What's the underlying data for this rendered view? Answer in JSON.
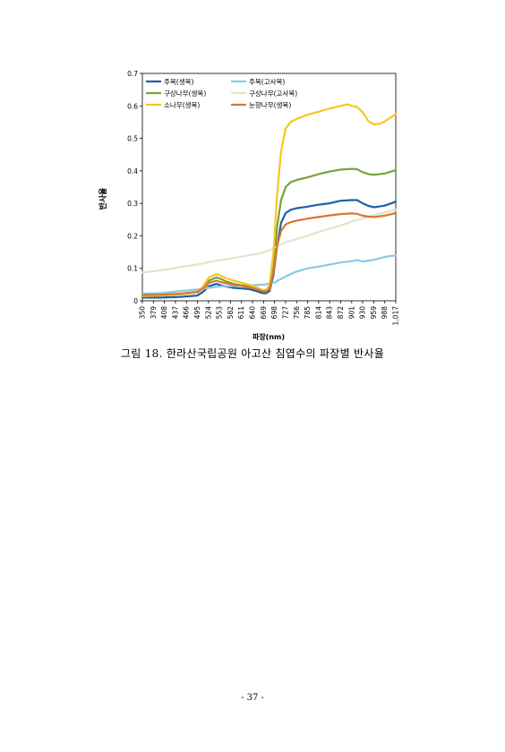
{
  "chart_data": {
    "type": "line",
    "xlabel": "파장(nm)",
    "ylabel": "반사율",
    "categories": [
      "350",
      "379",
      "408",
      "437",
      "466",
      "495",
      "524",
      "553",
      "582",
      "611",
      "640",
      "669",
      "698",
      "727",
      "756",
      "785",
      "814",
      "843",
      "872",
      "901",
      "930",
      "959",
      "988",
      "1,017"
    ],
    "x_numeric": [
      350,
      379,
      408,
      437,
      466,
      495,
      524,
      553,
      582,
      611,
      640,
      669,
      698,
      727,
      756,
      785,
      814,
      843,
      872,
      901,
      930,
      959,
      988,
      1017
    ],
    "xlim": [
      350,
      1017
    ],
    "ylim": [
      0,
      0.7
    ],
    "yticks": [
      0,
      0.1,
      0.2,
      0.3,
      0.4,
      0.5,
      0.6,
      0.7
    ],
    "grid": false,
    "legend_position": "top-left, two columns",
    "series": [
      {
        "name": "주목(생목)",
        "color": "#1f5fa8",
        "x": [
          350,
          400,
          450,
          495,
          510,
          525,
          545,
          555,
          570,
          590,
          610,
          630,
          650,
          665,
          675,
          685,
          695,
          705,
          715,
          727,
          740,
          756,
          785,
          814,
          843,
          872,
          901,
          915,
          930,
          945,
          960,
          988,
          1017
        ],
        "y": [
          0.01,
          0.01,
          0.012,
          0.016,
          0.028,
          0.045,
          0.052,
          0.048,
          0.044,
          0.04,
          0.038,
          0.036,
          0.03,
          0.024,
          0.023,
          0.03,
          0.08,
          0.17,
          0.24,
          0.27,
          0.28,
          0.285,
          0.29,
          0.296,
          0.3,
          0.308,
          0.31,
          0.31,
          0.3,
          0.292,
          0.288,
          0.293,
          0.305
        ]
      },
      {
        "name": "주목(고사목)",
        "color": "#8dc8e4",
        "x": [
          350,
          400,
          450,
          495,
          525,
          545,
          565,
          600,
          640,
          670,
          698,
          712,
          727,
          756,
          785,
          814,
          843,
          872,
          901,
          915,
          930,
          959,
          988,
          1017
        ],
        "y": [
          0.022,
          0.024,
          0.03,
          0.035,
          0.04,
          0.043,
          0.045,
          0.046,
          0.048,
          0.05,
          0.056,
          0.066,
          0.075,
          0.09,
          0.1,
          0.105,
          0.112,
          0.118,
          0.122,
          0.125,
          0.121,
          0.126,
          0.135,
          0.14
        ]
      },
      {
        "name": "구상나무(생목)",
        "color": "#77a23e",
        "x": [
          350,
          400,
          450,
          495,
          510,
          525,
          545,
          555,
          570,
          590,
          610,
          630,
          650,
          665,
          675,
          685,
          695,
          705,
          715,
          727,
          740,
          756,
          785,
          814,
          843,
          872,
          901,
          915,
          930,
          945,
          960,
          988,
          1017
        ],
        "y": [
          0.015,
          0.016,
          0.02,
          0.025,
          0.04,
          0.062,
          0.072,
          0.068,
          0.06,
          0.052,
          0.048,
          0.044,
          0.038,
          0.03,
          0.028,
          0.04,
          0.11,
          0.23,
          0.31,
          0.35,
          0.365,
          0.372,
          0.38,
          0.39,
          0.398,
          0.404,
          0.406,
          0.405,
          0.396,
          0.39,
          0.388,
          0.392,
          0.402
        ]
      },
      {
        "name": "구상나무(고사목)",
        "color": "#dde8c6",
        "x": [
          350,
          400,
          450,
          495,
          540,
          580,
          620,
          660,
          690,
          705,
          727,
          756,
          785,
          814,
          843,
          872,
          901,
          930,
          959,
          988,
          1017
        ],
        "y": [
          0.087,
          0.094,
          0.104,
          0.112,
          0.122,
          0.13,
          0.138,
          0.146,
          0.158,
          0.168,
          0.18,
          0.19,
          0.2,
          0.212,
          0.222,
          0.232,
          0.244,
          0.254,
          0.264,
          0.272,
          0.28
        ]
      },
      {
        "name": "소나무(생목)",
        "color": "#f5c81c",
        "x": [
          350,
          400,
          450,
          495,
          510,
          525,
          545,
          555,
          570,
          590,
          610,
          630,
          650,
          665,
          675,
          685,
          695,
          705,
          715,
          727,
          740,
          756,
          785,
          814,
          843,
          872,
          890,
          901,
          915,
          930,
          945,
          960,
          975,
          988,
          1017
        ],
        "y": [
          0.015,
          0.016,
          0.02,
          0.026,
          0.045,
          0.072,
          0.082,
          0.078,
          0.07,
          0.062,
          0.056,
          0.05,
          0.042,
          0.034,
          0.032,
          0.05,
          0.15,
          0.33,
          0.46,
          0.53,
          0.55,
          0.56,
          0.573,
          0.582,
          0.592,
          0.6,
          0.605,
          0.6,
          0.597,
          0.58,
          0.553,
          0.543,
          0.545,
          0.552,
          0.575
        ]
      },
      {
        "name": "눈향나무(생목)",
        "color": "#d8772f",
        "x": [
          350,
          400,
          450,
          495,
          510,
          525,
          545,
          555,
          570,
          590,
          610,
          630,
          650,
          665,
          675,
          685,
          695,
          705,
          715,
          727,
          740,
          756,
          785,
          814,
          843,
          872,
          901,
          915,
          930,
          945,
          960,
          988,
          1017
        ],
        "y": [
          0.018,
          0.019,
          0.022,
          0.028,
          0.038,
          0.055,
          0.062,
          0.058,
          0.054,
          0.05,
          0.046,
          0.042,
          0.036,
          0.03,
          0.029,
          0.036,
          0.09,
          0.17,
          0.215,
          0.235,
          0.242,
          0.247,
          0.253,
          0.258,
          0.263,
          0.267,
          0.269,
          0.268,
          0.262,
          0.259,
          0.258,
          0.262,
          0.27
        ]
      }
    ]
  },
  "caption": "그림 18. 한라산국립공원 아고산 침엽수의 파장별 반사율",
  "page_number": "- 37 -"
}
